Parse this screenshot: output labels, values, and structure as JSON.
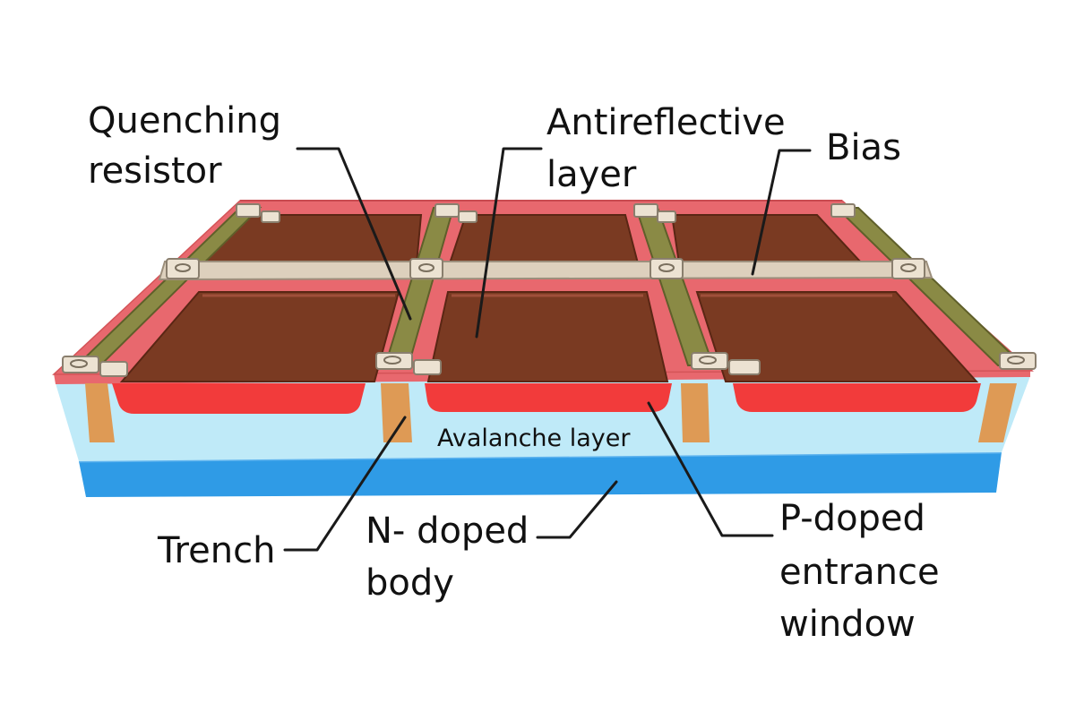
{
  "labels": {
    "quenching_line1": "Quenching",
    "quenching_line2": "resistor",
    "antireflective_line1": "Antireflective",
    "antireflective_line2": "layer",
    "bias": "Bias",
    "avalanche": "Avalanche layer",
    "trench": "Trench",
    "ndoped_line1": "N- doped",
    "ndoped_line2": "body",
    "pdoped_line1": "P-doped",
    "pdoped_line2": "entrance",
    "pdoped_line3": "window"
  },
  "colors": {
    "cell_fill": "#7a3a22",
    "pink_rim": "#e8686e",
    "p_window": "#f23b3b",
    "avalanche": "#bfeaf8",
    "n_body": "#2f9be6",
    "trench": "#de9a55",
    "resistor": "#8a8a45",
    "bias_bar": "#ddd0bd"
  }
}
